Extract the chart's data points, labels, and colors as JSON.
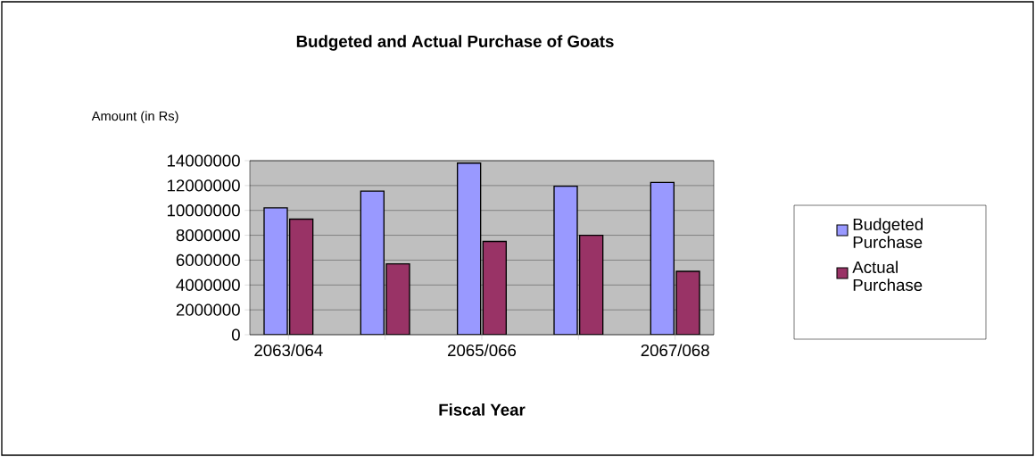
{
  "chart_data": {
    "type": "bar",
    "title": "Budgeted and Actual Purchase of Goats",
    "ylabel": "Amount (in Rs)",
    "xlabel": "Fiscal Year",
    "categories": [
      "2063/064",
      null,
      "2065/066",
      null,
      "2067/068"
    ],
    "series": [
      {
        "name": "Budgeted Purchase",
        "color": "#9999ff",
        "values": [
          10200000,
          11550000,
          13800000,
          11950000,
          12250000
        ]
      },
      {
        "name": "Actual Purchase",
        "color": "#993366",
        "values": [
          9300000,
          5700000,
          7500000,
          8000000,
          5100000
        ]
      }
    ],
    "ylim": [
      0,
      14000000
    ],
    "yticks": [
      0,
      2000000,
      4000000,
      6000000,
      8000000,
      10000000,
      12000000,
      14000000
    ],
    "grid": "y",
    "legend": "right"
  }
}
